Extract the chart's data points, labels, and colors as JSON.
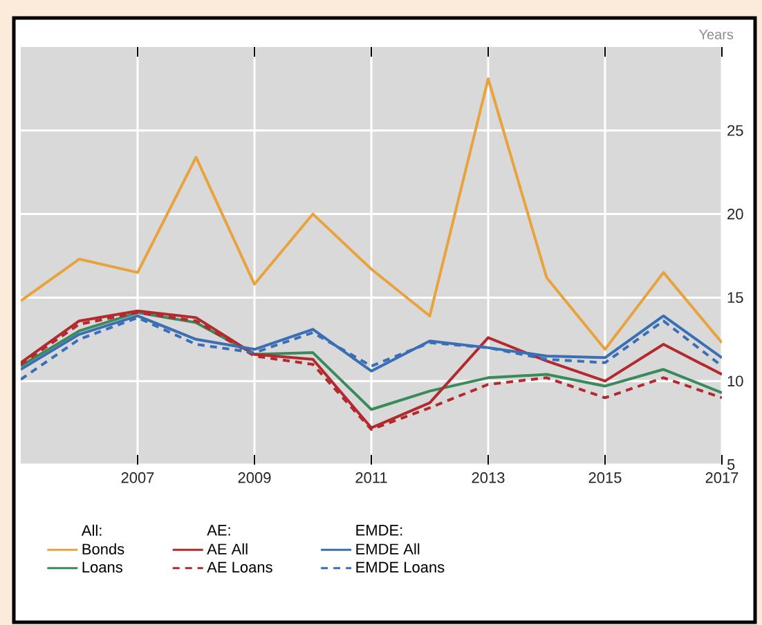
{
  "chart_data": {
    "type": "line",
    "ylabel": "Years",
    "x": [
      2005,
      2006,
      2007,
      2008,
      2009,
      2010,
      2011,
      2012,
      2013,
      2014,
      2015,
      2016,
      2017
    ],
    "xlim": [
      2005,
      2017
    ],
    "xticks": [
      2007,
      2009,
      2011,
      2013,
      2015,
      2017
    ],
    "ylim": [
      5,
      30
    ],
    "yticks": [
      5,
      10,
      15,
      20,
      25
    ],
    "grid": true,
    "legend": "bottom",
    "marker": "none",
    "annotations": [
      "All:",
      "AE:",
      "EMDE:"
    ],
    "series": [
      {
        "name": "Bonds",
        "color": "#e8a33d",
        "line_style": "solid",
        "values": [
          14.8,
          17.3,
          16.5,
          23.4,
          15.8,
          20.0,
          16.7,
          13.9,
          28.1,
          16.2,
          11.9,
          16.5,
          12.3
        ]
      },
      {
        "name": "Loans",
        "color": "#3a8a5c",
        "line_style": "solid",
        "values": [
          10.9,
          13.0,
          14.1,
          13.5,
          11.6,
          11.7,
          8.3,
          9.4,
          10.2,
          10.4,
          9.7,
          10.7,
          9.3
        ]
      },
      {
        "name": "AE All",
        "color": "#b22a2e",
        "line_style": "solid",
        "values": [
          11.1,
          13.6,
          14.2,
          13.8,
          11.6,
          11.3,
          7.2,
          8.7,
          12.6,
          11.2,
          10.0,
          12.2,
          10.4
        ]
      },
      {
        "name": "AE Loans",
        "color": "#b22a2e",
        "line_style": "dashed",
        "values": [
          11.0,
          13.4,
          14.1,
          13.6,
          11.5,
          11.0,
          7.1,
          8.4,
          9.8,
          10.2,
          9.0,
          10.2,
          9.0
        ]
      },
      {
        "name": "EMDE All",
        "color": "#3a6eb5",
        "line_style": "solid",
        "values": [
          10.7,
          12.8,
          13.9,
          12.5,
          11.9,
          13.1,
          10.6,
          12.4,
          12.0,
          11.5,
          11.4,
          13.9,
          11.4
        ]
      },
      {
        "name": "EMDE Loans",
        "color": "#3a6eb5",
        "line_style": "dashed",
        "values": [
          10.1,
          12.5,
          13.8,
          12.2,
          11.7,
          12.9,
          10.9,
          12.3,
          12.0,
          11.3,
          11.1,
          13.6,
          10.9
        ]
      }
    ]
  }
}
